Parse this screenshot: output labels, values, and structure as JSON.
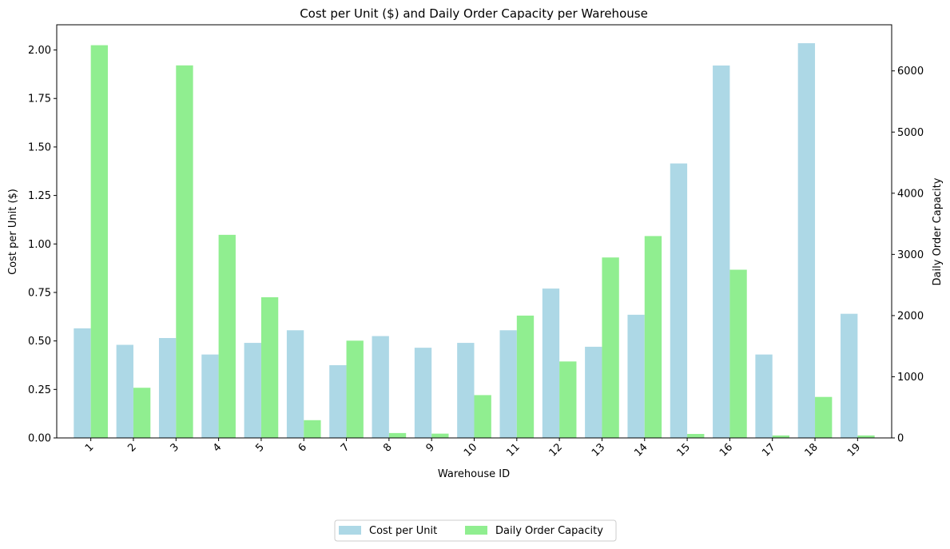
{
  "chart_data": {
    "type": "bar",
    "title": "Cost per Unit ($) and Daily Order Capacity per Warehouse",
    "xlabel": "Warehouse ID",
    "ylabel_left": "Cost per Unit ($)",
    "ylabel_right": "Daily Order Capacity",
    "categories": [
      "1",
      "2",
      "3",
      "4",
      "5",
      "6",
      "7",
      "8",
      "9",
      "10",
      "11",
      "12",
      "13",
      "14",
      "15",
      "16",
      "17",
      "18",
      "19"
    ],
    "ylim_left": [
      0,
      2.13
    ],
    "ylim_right": [
      0,
      6754
    ],
    "yticks_left": [
      "0.00",
      "0.25",
      "0.50",
      "0.75",
      "1.00",
      "1.25",
      "1.50",
      "1.75",
      "2.00"
    ],
    "yticks_right": [
      "0",
      "1000",
      "2000",
      "3000",
      "4000",
      "5000",
      "6000"
    ],
    "series": [
      {
        "name": "Cost per Unit",
        "axis": "left",
        "color": "#add8e6",
        "values": [
          0.565,
          0.48,
          0.515,
          0.43,
          0.49,
          0.555,
          0.375,
          0.525,
          0.465,
          0.49,
          0.555,
          0.77,
          0.47,
          0.635,
          1.415,
          1.92,
          0.43,
          2.035,
          0.64
        ]
      },
      {
        "name": "Daily Order Capacity",
        "axis": "right",
        "color": "#90ee90",
        "values": [
          6420,
          820,
          6090,
          3320,
          2300,
          290,
          1590,
          80,
          70,
          700,
          2000,
          1250,
          2950,
          3300,
          65,
          2750,
          40,
          670,
          40
        ]
      }
    ],
    "legend": {
      "placement": "bottom-center",
      "entries": [
        "Cost per Unit",
        "Daily Order Capacity"
      ]
    },
    "grid": false
  }
}
